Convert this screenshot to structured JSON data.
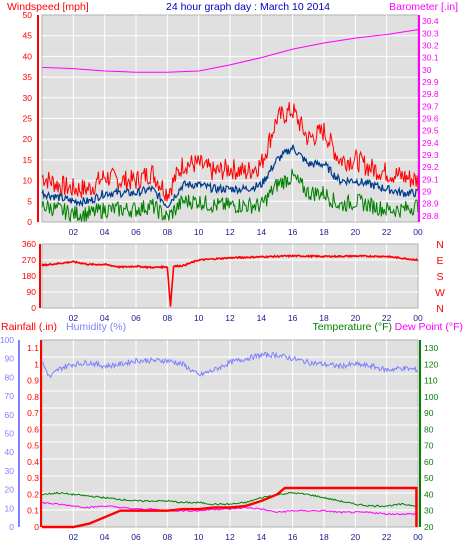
{
  "colors": {
    "background": "#e0e0e0",
    "wind": "#ff0000",
    "wind_avg": "#003a8c",
    "wind_gust_low": "#008000",
    "barometer": "#ff00ff",
    "direction": "#ff0000",
    "rainfall": "#ff0000",
    "humidity": "#8080ff",
    "temperature": "#008000",
    "dewpoint": "#ff00ff",
    "title": "#0000c0"
  },
  "title": "24 hour graph day : March 10 2014",
  "chart_data": [
    {
      "type": "line",
      "ylabel": "Windspeed [mph]",
      "y2label": "Barometer [.in]",
      "ylim": [
        0,
        50
      ],
      "y2lim": [
        28.75,
        30.45
      ],
      "y_ticks": [
        "0",
        "5",
        "10",
        "15",
        "20",
        "25",
        "30",
        "35",
        "40",
        "45",
        "50"
      ],
      "y2_ticks": [
        "28.8",
        "28.9",
        "29",
        "29.1",
        "29.2",
        "29.3",
        "29.4",
        "29.5",
        "29.6",
        "29.7",
        "29.8",
        "29.9",
        "30",
        "30.1",
        "30.2",
        "30.3",
        "30.4"
      ],
      "x_ticks": [
        "02",
        "04",
        "06",
        "08",
        "10",
        "12",
        "14",
        "16",
        "18",
        "20",
        "22",
        "00"
      ],
      "x_hours": [
        2,
        4,
        6,
        8,
        10,
        12,
        14,
        16,
        18,
        20,
        22,
        24
      ],
      "grid": true,
      "series": [
        {
          "key": "gust",
          "color_key": "wind",
          "x": [
            0,
            1,
            2,
            3,
            4,
            5,
            6,
            7,
            8,
            9,
            10,
            11,
            12,
            13,
            14,
            15,
            16,
            17,
            18,
            19,
            20,
            21,
            22,
            23,
            24
          ],
          "values": [
            11,
            9,
            8,
            8,
            11,
            10,
            10,
            12,
            7,
            14,
            14,
            12,
            13,
            12,
            14,
            25,
            27,
            20,
            22,
            15,
            15,
            13,
            12,
            11,
            10
          ]
        },
        {
          "key": "average",
          "color_key": "wind_avg",
          "x": [
            0,
            1,
            2,
            3,
            4,
            5,
            6,
            7,
            8,
            9,
            10,
            11,
            12,
            13,
            14,
            15,
            16,
            17,
            18,
            19,
            20,
            21,
            22,
            23,
            24
          ],
          "values": [
            7,
            6,
            5,
            5,
            7,
            7,
            7,
            8,
            4,
            9,
            9,
            8,
            8,
            8,
            9,
            15,
            18,
            14,
            14,
            10,
            10,
            9,
            8,
            7,
            7
          ]
        },
        {
          "key": "low",
          "color_key": "wind_gust_low",
          "x": [
            0,
            1,
            2,
            3,
            4,
            5,
            6,
            7,
            8,
            9,
            10,
            11,
            12,
            13,
            14,
            15,
            16,
            17,
            18,
            19,
            20,
            21,
            22,
            23,
            24
          ],
          "values": [
            4,
            3,
            2,
            2,
            3,
            3,
            3,
            4,
            1,
            5,
            5,
            4,
            4,
            4,
            4,
            9,
            11,
            7,
            7,
            4,
            5,
            4,
            3,
            3,
            4
          ]
        },
        {
          "key": "barometer",
          "color_key": "barometer",
          "axis": "y2",
          "x": [
            0,
            2,
            4,
            6,
            8,
            10,
            12,
            14,
            16,
            18,
            20,
            22,
            24
          ],
          "values": [
            30.02,
            30.01,
            29.99,
            29.98,
            29.98,
            29.99,
            30.04,
            30.1,
            30.17,
            30.22,
            30.26,
            30.29,
            30.33
          ]
        }
      ]
    },
    {
      "type": "line",
      "ylim": [
        0,
        360
      ],
      "y_ticks": [
        "0",
        "90",
        "180",
        "270",
        "360"
      ],
      "y2_labels": [
        "N",
        "W",
        "S",
        "E",
        "N"
      ],
      "x_ticks": [
        "02",
        "04",
        "06",
        "08",
        "10",
        "12",
        "14",
        "16",
        "18",
        "20",
        "22",
        "00"
      ],
      "series": [
        {
          "key": "direction",
          "color_key": "direction",
          "x": [
            0,
            1,
            2,
            3,
            4,
            5,
            6,
            7,
            8,
            8.2,
            8.4,
            9,
            10,
            12,
            14,
            16,
            18,
            20,
            22,
            24
          ],
          "values": [
            240,
            250,
            260,
            245,
            245,
            230,
            235,
            228,
            232,
            8,
            235,
            238,
            270,
            282,
            288,
            293,
            290,
            292,
            290,
            270
          ]
        }
      ]
    },
    {
      "type": "line",
      "ylabel": "Rainfall (.in)",
      "ylabel2": "Humidity (%)",
      "y2label": "Temperature (°F)",
      "y2label2": "Dew Point (°F)",
      "ylim": [
        0,
        1.15
      ],
      "hum_lim": [
        0,
        100
      ],
      "y2lim": [
        20,
        135
      ],
      "rain_ticks": [
        "0",
        "0.1",
        "0.2",
        "0.3",
        "0.4",
        "0.5",
        "0.6",
        "0.7",
        "0.8",
        "0.9",
        "1",
        "1.1"
      ],
      "hum_ticks": [
        "0",
        "10",
        "20",
        "30",
        "40",
        "50",
        "60",
        "70",
        "80",
        "90",
        "100"
      ],
      "y2_ticks": [
        "20",
        "30",
        "40",
        "50",
        "60",
        "70",
        "80",
        "90",
        "100",
        "110",
        "120",
        "130"
      ],
      "x_ticks": [
        "02",
        "04",
        "06",
        "08",
        "10",
        "12",
        "14",
        "16",
        "18",
        "20",
        "22",
        "00"
      ],
      "series": [
        {
          "key": "rainfall",
          "color_key": "rainfall",
          "x": [
            0,
            2,
            3,
            4,
            5,
            6,
            7,
            8,
            9,
            10,
            11,
            12,
            13,
            14,
            15,
            15.5,
            16,
            18,
            20,
            22,
            23.9,
            23.9
          ],
          "values": [
            0,
            0,
            0.02,
            0.06,
            0.1,
            0.1,
            0.1,
            0.1,
            0.11,
            0.11,
            0.12,
            0.12,
            0.13,
            0.16,
            0.2,
            0.24,
            0.24,
            0.24,
            0.24,
            0.24,
            0.24,
            0
          ]
        },
        {
          "key": "humidity",
          "color_key": "humidity",
          "axis": "hum",
          "x": [
            0,
            0.5,
            1,
            1.5,
            2,
            3,
            4,
            5,
            6,
            7,
            8,
            9,
            10,
            11,
            12,
            13,
            14,
            15,
            16,
            17,
            18,
            19,
            20,
            21,
            22,
            23,
            24
          ],
          "values": [
            88,
            80,
            84,
            86,
            87,
            88,
            86,
            87,
            89,
            89,
            89,
            87,
            81,
            84,
            88,
            90,
            92,
            92,
            90,
            88,
            87,
            86,
            87,
            86,
            84,
            85,
            84
          ]
        },
        {
          "key": "temperature",
          "color_key": "temperature",
          "axis": "y2",
          "x": [
            0,
            1,
            2,
            3,
            4,
            5,
            6,
            7,
            8,
            9,
            10,
            11,
            12,
            13,
            14,
            15,
            16,
            17,
            18,
            19,
            20,
            21,
            22,
            23,
            24
          ],
          "values": [
            40,
            41,
            40,
            39,
            38,
            37,
            36,
            36,
            36,
            35,
            35,
            34,
            34,
            35,
            38,
            40,
            41,
            40,
            38,
            36,
            34,
            33,
            33,
            34,
            33
          ]
        },
        {
          "key": "dewpoint",
          "color_key": "dewpoint",
          "axis": "y2",
          "x": [
            0,
            1,
            2,
            3,
            4,
            5,
            6,
            7,
            8,
            9,
            10,
            11,
            12,
            13,
            14,
            15,
            16,
            17,
            18,
            19,
            20,
            21,
            22,
            23,
            24
          ],
          "values": [
            35,
            34,
            33,
            32,
            33,
            32,
            31,
            31,
            30,
            30,
            30,
            31,
            31,
            32,
            31,
            29,
            30,
            30,
            30,
            29,
            29,
            29,
            28,
            28,
            28
          ]
        }
      ]
    }
  ]
}
